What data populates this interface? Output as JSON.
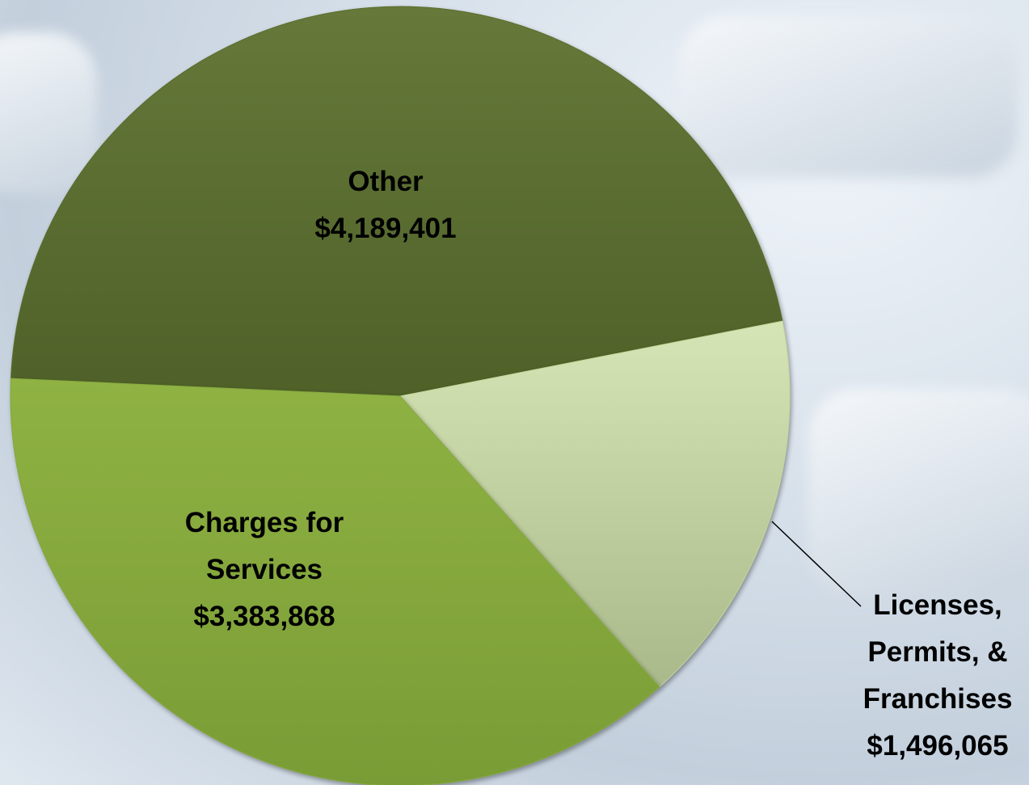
{
  "chart_data": {
    "type": "pie",
    "categories": [
      "Other",
      "Licenses, Permits, & Franchises",
      "Charges for Services"
    ],
    "values": [
      4189401,
      1496065,
      3383868
    ],
    "value_labels": [
      "$4,189,401",
      "$1,496,065",
      "$3,383,868"
    ],
    "colors": [
      "#5a6d2d",
      "#c4d79c",
      "#86a93f"
    ]
  }
}
